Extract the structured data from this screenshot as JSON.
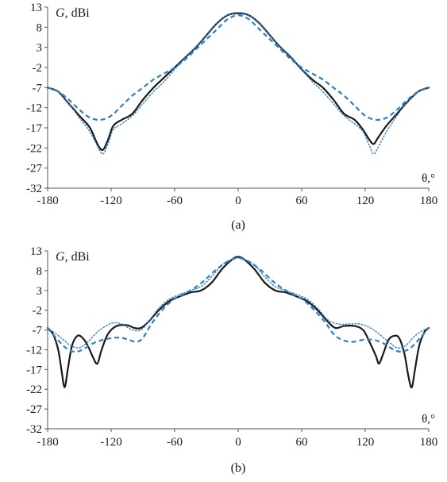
{
  "chart_data": [
    {
      "type": "line",
      "caption": "(a)",
      "ylabel_var": "G",
      "ylabel_unit": ", dBi",
      "xlabel": "θ,°",
      "xlim": [
        -180,
        180
      ],
      "ylim": [
        -32,
        13
      ],
      "xticks": [
        "-180",
        "-120",
        "-60",
        "0",
        "60",
        "120",
        "180"
      ],
      "yticks": [
        "13",
        "8",
        "3",
        "-2",
        "-7",
        "-12",
        "-17",
        "-22",
        "-27",
        "-32"
      ],
      "grid": false,
      "series": [
        {
          "style": "solid",
          "color": "#1a1a1a",
          "points": [
            [
              -180,
              -7
            ],
            [
              -170,
              -8
            ],
            [
              -160,
              -11
            ],
            [
              -150,
              -14
            ],
            [
              -140,
              -17
            ],
            [
              -133,
              -21
            ],
            [
              -128,
              -22.5
            ],
            [
              -123,
              -20
            ],
            [
              -118,
              -16.5
            ],
            [
              -110,
              -15
            ],
            [
              -100,
              -13.5
            ],
            [
              -90,
              -10
            ],
            [
              -80,
              -7
            ],
            [
              -70,
              -4.5
            ],
            [
              -60,
              -2
            ],
            [
              -50,
              0.5
            ],
            [
              -40,
              3
            ],
            [
              -30,
              6
            ],
            [
              -20,
              9
            ],
            [
              -10,
              11
            ],
            [
              0,
              11.5
            ],
            [
              10,
              11
            ],
            [
              20,
              9
            ],
            [
              30,
              6
            ],
            [
              40,
              3
            ],
            [
              50,
              0.5
            ],
            [
              60,
              -2.5
            ],
            [
              70,
              -5
            ],
            [
              80,
              -7
            ],
            [
              90,
              -10
            ],
            [
              100,
              -13.5
            ],
            [
              110,
              -15
            ],
            [
              118,
              -17.5
            ],
            [
              124,
              -20
            ],
            [
              128,
              -21
            ],
            [
              132,
              -19.5
            ],
            [
              140,
              -16.5
            ],
            [
              150,
              -13.5
            ],
            [
              160,
              -10.5
            ],
            [
              170,
              -8
            ],
            [
              180,
              -7
            ]
          ]
        },
        {
          "style": "dotted",
          "color": "#2f7fc1",
          "points": [
            [
              -180,
              -7
            ],
            [
              -170,
              -8
            ],
            [
              -160,
              -11
            ],
            [
              -150,
              -14.5
            ],
            [
              -140,
              -18
            ],
            [
              -133,
              -21.5
            ],
            [
              -128,
              -23.5
            ],
            [
              -123,
              -21
            ],
            [
              -118,
              -17.5
            ],
            [
              -110,
              -16
            ],
            [
              -100,
              -14
            ],
            [
              -90,
              -11
            ],
            [
              -80,
              -8
            ],
            [
              -70,
              -5.5
            ],
            [
              -60,
              -2.5
            ],
            [
              -50,
              0.5
            ],
            [
              -40,
              3
            ],
            [
              -30,
              6
            ],
            [
              -20,
              9
            ],
            [
              -10,
              11
            ],
            [
              0,
              11.3
            ],
            [
              10,
              11
            ],
            [
              20,
              9
            ],
            [
              30,
              6
            ],
            [
              40,
              3
            ],
            [
              50,
              0.5
            ],
            [
              60,
              -2.5
            ],
            [
              70,
              -5.5
            ],
            [
              80,
              -8
            ],
            [
              90,
              -11
            ],
            [
              100,
              -14
            ],
            [
              110,
              -16
            ],
            [
              118,
              -18
            ],
            [
              124,
              -21.5
            ],
            [
              128,
              -23.5
            ],
            [
              132,
              -22
            ],
            [
              140,
              -18
            ],
            [
              150,
              -14
            ],
            [
              160,
              -10.5
            ],
            [
              170,
              -8
            ],
            [
              180,
              -7
            ]
          ]
        },
        {
          "style": "dashed",
          "color": "#2f7fc1",
          "points": [
            [
              -180,
              -7
            ],
            [
              -170,
              -8
            ],
            [
              -160,
              -10
            ],
            [
              -150,
              -12.5
            ],
            [
              -140,
              -14.5
            ],
            [
              -130,
              -15
            ],
            [
              -120,
              -14
            ],
            [
              -110,
              -11.5
            ],
            [
              -100,
              -9
            ],
            [
              -90,
              -7
            ],
            [
              -80,
              -5
            ],
            [
              -70,
              -3.5
            ],
            [
              -60,
              -2
            ],
            [
              -50,
              0
            ],
            [
              -40,
              2.5
            ],
            [
              -30,
              5
            ],
            [
              -20,
              7.5
            ],
            [
              -10,
              10
            ],
            [
              0,
              11
            ],
            [
              10,
              10
            ],
            [
              20,
              7.5
            ],
            [
              30,
              5
            ],
            [
              40,
              2.5
            ],
            [
              50,
              0
            ],
            [
              60,
              -2
            ],
            [
              70,
              -3.5
            ],
            [
              80,
              -5
            ],
            [
              90,
              -7
            ],
            [
              100,
              -9
            ],
            [
              110,
              -11.5
            ],
            [
              120,
              -14
            ],
            [
              130,
              -15
            ],
            [
              140,
              -14.5
            ],
            [
              150,
              -12.5
            ],
            [
              160,
              -10
            ],
            [
              170,
              -8
            ],
            [
              180,
              -7
            ]
          ]
        }
      ]
    },
    {
      "type": "line",
      "caption": "(b)",
      "ylabel_var": "G",
      "ylabel_unit": ", dBi",
      "xlabel": "θ,°",
      "xlim": [
        -180,
        180
      ],
      "ylim": [
        -32,
        13
      ],
      "xticks": [
        "-180",
        "-120",
        "-60",
        "0",
        "60",
        "120",
        "180"
      ],
      "yticks": [
        "13",
        "8",
        "3",
        "-2",
        "-7",
        "-12",
        "-17",
        "-22",
        "-27",
        "-32"
      ],
      "grid": false,
      "series": [
        {
          "style": "solid",
          "color": "#1a1a1a",
          "points": [
            [
              -180,
              -6.5
            ],
            [
              -175,
              -8
            ],
            [
              -170,
              -12
            ],
            [
              -167,
              -17
            ],
            [
              -164,
              -21.5
            ],
            [
              -161,
              -17
            ],
            [
              -157,
              -11
            ],
            [
              -152,
              -8.5
            ],
            [
              -147,
              -9
            ],
            [
              -142,
              -11
            ],
            [
              -137,
              -14
            ],
            [
              -133,
              -15.5
            ],
            [
              -129,
              -12
            ],
            [
              -123,
              -8
            ],
            [
              -115,
              -6
            ],
            [
              -105,
              -5.8
            ],
            [
              -98,
              -6.5
            ],
            [
              -92,
              -6.5
            ],
            [
              -85,
              -5
            ],
            [
              -75,
              -2
            ],
            [
              -65,
              0.3
            ],
            [
              -55,
              1.5
            ],
            [
              -45,
              2.5
            ],
            [
              -35,
              3
            ],
            [
              -25,
              5
            ],
            [
              -15,
              8.5
            ],
            [
              -5,
              11
            ],
            [
              0,
              11.5
            ],
            [
              5,
              11
            ],
            [
              15,
              8.5
            ],
            [
              25,
              5
            ],
            [
              35,
              3
            ],
            [
              45,
              2.5
            ],
            [
              55,
              1.5
            ],
            [
              65,
              0.3
            ],
            [
              75,
              -2
            ],
            [
              85,
              -5
            ],
            [
              92,
              -6.5
            ],
            [
              100,
              -6
            ],
            [
              110,
              -6
            ],
            [
              118,
              -7
            ],
            [
              124,
              -10
            ],
            [
              130,
              -13.5
            ],
            [
              133,
              -15.5
            ],
            [
              137,
              -13
            ],
            [
              142,
              -9.5
            ],
            [
              147,
              -8.5
            ],
            [
              152,
              -9
            ],
            [
              157,
              -13
            ],
            [
              161,
              -19
            ],
            [
              164,
              -21.5
            ],
            [
              167,
              -17
            ],
            [
              171,
              -11
            ],
            [
              176,
              -7.5
            ],
            [
              180,
              -6.5
            ]
          ]
        },
        {
          "style": "dotted",
          "color": "#2f7fc1",
          "points": [
            [
              -180,
              -6.5
            ],
            [
              -172,
              -8
            ],
            [
              -165,
              -9.5
            ],
            [
              -158,
              -11
            ],
            [
              -150,
              -11.5
            ],
            [
              -142,
              -10
            ],
            [
              -133,
              -7.5
            ],
            [
              -125,
              -6
            ],
            [
              -118,
              -5.2
            ],
            [
              -110,
              -5.5
            ],
            [
              -100,
              -7
            ],
            [
              -92,
              -7
            ],
            [
              -85,
              -5
            ],
            [
              -75,
              -1.5
            ],
            [
              -65,
              0.8
            ],
            [
              -55,
              2
            ],
            [
              -45,
              3
            ],
            [
              -35,
              4
            ],
            [
              -25,
              6.5
            ],
            [
              -15,
              9.5
            ],
            [
              -5,
              11
            ],
            [
              0,
              11.2
            ],
            [
              5,
              11
            ],
            [
              15,
              9.5
            ],
            [
              25,
              6.5
            ],
            [
              35,
              4
            ],
            [
              45,
              3
            ],
            [
              55,
              2
            ],
            [
              65,
              0.8
            ],
            [
              75,
              -1.5
            ],
            [
              85,
              -4.5
            ],
            [
              95,
              -5.5
            ],
            [
              105,
              -5.5
            ],
            [
              115,
              -5.5
            ],
            [
              125,
              -6.5
            ],
            [
              133,
              -8
            ],
            [
              142,
              -10
            ],
            [
              150,
              -11.5
            ],
            [
              158,
              -11
            ],
            [
              165,
              -9
            ],
            [
              172,
              -7.5
            ],
            [
              180,
              -6.5
            ]
          ]
        },
        {
          "style": "dashed",
          "color": "#2f7fc1",
          "points": [
            [
              -180,
              -6.5
            ],
            [
              -172,
              -9
            ],
            [
              -163,
              -11.5
            ],
            [
              -155,
              -12.5
            ],
            [
              -147,
              -12
            ],
            [
              -138,
              -10.5
            ],
            [
              -128,
              -9.5
            ],
            [
              -118,
              -9
            ],
            [
              -110,
              -9
            ],
            [
              -103,
              -9.5
            ],
            [
              -96,
              -10
            ],
            [
              -90,
              -9
            ],
            [
              -82,
              -5.5
            ],
            [
              -72,
              -2
            ],
            [
              -62,
              0.5
            ],
            [
              -52,
              2
            ],
            [
              -42,
              3.5
            ],
            [
              -32,
              5.5
            ],
            [
              -22,
              8
            ],
            [
              -12,
              10
            ],
            [
              -4,
              11
            ],
            [
              0,
              11.3
            ],
            [
              4,
              11
            ],
            [
              12,
              10
            ],
            [
              22,
              8
            ],
            [
              32,
              5.5
            ],
            [
              42,
              3.5
            ],
            [
              52,
              2
            ],
            [
              62,
              0.5
            ],
            [
              72,
              -2
            ],
            [
              82,
              -5
            ],
            [
              90,
              -8
            ],
            [
              98,
              -9.5
            ],
            [
              108,
              -10
            ],
            [
              118,
              -9.5
            ],
            [
              128,
              -9.5
            ],
            [
              138,
              -10.5
            ],
            [
              147,
              -12
            ],
            [
              155,
              -12.5
            ],
            [
              163,
              -11.5
            ],
            [
              172,
              -9
            ],
            [
              180,
              -6.5
            ]
          ]
        }
      ]
    }
  ]
}
